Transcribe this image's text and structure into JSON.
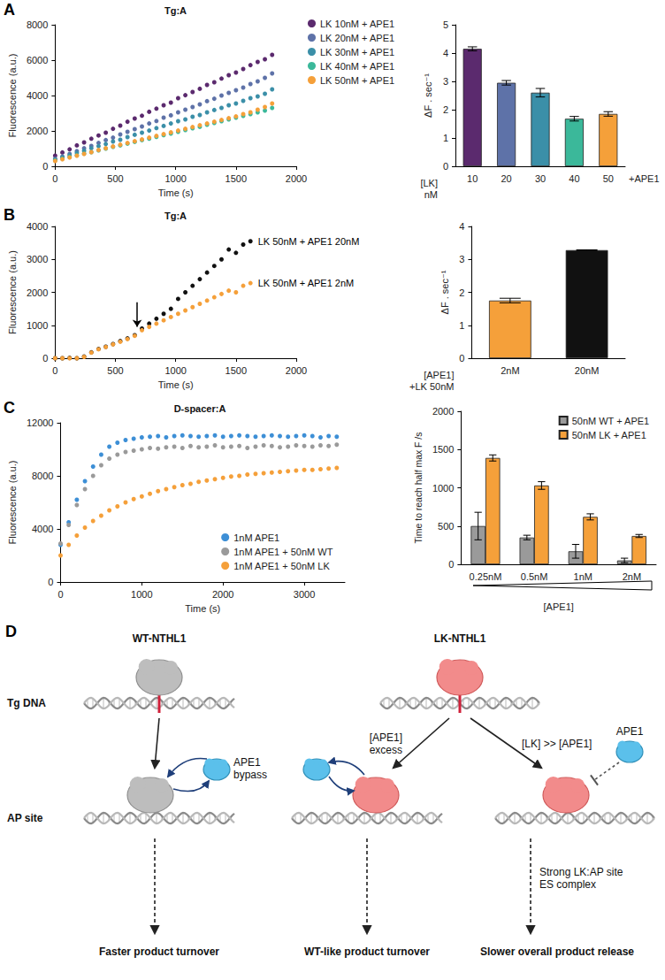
{
  "chart_data": [
    {
      "panel": "A",
      "type": "scatter",
      "title": "Tg:A",
      "xlabel": "Time (s)",
      "ylabel": "Fluorescence (a.u.)",
      "x": [
        0,
        60,
        120,
        180,
        240,
        300,
        360,
        420,
        480,
        540,
        600,
        660,
        720,
        780,
        840,
        900,
        960,
        1020,
        1080,
        1140,
        1200,
        1260,
        1320,
        1380,
        1440,
        1500,
        1560,
        1620,
        1680,
        1740,
        1800
      ],
      "xlim": [
        0,
        2000
      ],
      "xticks": [
        0,
        500,
        1000,
        1500,
        2000
      ],
      "ylim": [
        0,
        8000
      ],
      "yticks": [
        0,
        2000,
        4000,
        6000,
        8000
      ],
      "marker": "circle",
      "legend": "right",
      "series": [
        {
          "name": "LK 10nM + APE1",
          "color": "#5b2a6e",
          "values": [
            600,
            780,
            960,
            1180,
            1350,
            1560,
            1740,
            1900,
            2120,
            2300,
            2520,
            2700,
            2860,
            3080,
            3260,
            3450,
            3600,
            3850,
            4020,
            4200,
            4380,
            4600,
            4750,
            4960,
            5150,
            5300,
            5500,
            5720,
            5900,
            6050,
            6300
          ]
        },
        {
          "name": "LK 20nM + APE1",
          "color": "#5e72a8",
          "values": [
            420,
            560,
            700,
            860,
            1020,
            1150,
            1320,
            1480,
            1620,
            1800,
            1950,
            2100,
            2250,
            2420,
            2560,
            2750,
            2880,
            3050,
            3200,
            3350,
            3500,
            3680,
            3820,
            4000,
            4150,
            4300,
            4450,
            4650,
            4800,
            5000,
            5250
          ]
        },
        {
          "name": "LK 30nM + APE1",
          "color": "#3b8fa8",
          "values": [
            380,
            500,
            620,
            760,
            880,
            1020,
            1140,
            1260,
            1400,
            1500,
            1650,
            1780,
            1900,
            2020,
            2160,
            2280,
            2420,
            2550,
            2650,
            2800,
            2900,
            3050,
            3180,
            3300,
            3450,
            3550,
            3700,
            3850,
            3950,
            4100,
            4350
          ]
        },
        {
          "name": "LK 40nM + APE1",
          "color": "#3bb89a",
          "values": [
            330,
            420,
            520,
            620,
            720,
            800,
            900,
            1000,
            1100,
            1180,
            1280,
            1380,
            1480,
            1560,
            1660,
            1760,
            1850,
            1950,
            2050,
            2150,
            2230,
            2350,
            2450,
            2550,
            2650,
            2750,
            2850,
            2950,
            3050,
            3150,
            3300
          ]
        },
        {
          "name": "LK 50nM + APE1",
          "color": "#f5a03a",
          "values": [
            300,
            400,
            500,
            600,
            700,
            800,
            920,
            1020,
            1120,
            1220,
            1320,
            1420,
            1520,
            1620,
            1720,
            1820,
            1920,
            2020,
            2120,
            2220,
            2320,
            2420,
            2520,
            2620,
            2720,
            2820,
            2950,
            3050,
            3200,
            3350,
            3550
          ]
        }
      ]
    },
    {
      "type": "bar",
      "ylabel": "ΔF . sec⁻¹",
      "xlabel": "[LK] nM",
      "annotations": [
        "+APE1"
      ],
      "categories": [
        "10",
        "20",
        "30",
        "40",
        "50"
      ],
      "values": [
        4.15,
        2.95,
        2.6,
        1.68,
        1.85
      ],
      "errors": [
        0.07,
        0.08,
        0.15,
        0.08,
        0.08
      ],
      "colors": [
        "#5b2a6e",
        "#5e72a8",
        "#3b8fa8",
        "#3bb89a",
        "#f5a03a"
      ],
      "ylim": [
        0,
        5
      ],
      "yticks": [
        0,
        1,
        2,
        3,
        4,
        5
      ]
    },
    {
      "panel": "B",
      "type": "scatter",
      "title": "Tg:A",
      "xlabel": "Time (s)",
      "ylabel": "Fluorescence (a.u.)",
      "x": [
        0,
        60,
        120,
        180,
        240,
        300,
        360,
        420,
        480,
        540,
        600,
        660,
        720,
        780,
        840,
        900,
        960,
        1020,
        1080,
        1140,
        1200,
        1260,
        1320,
        1380,
        1440,
        1500,
        1560,
        1620
      ],
      "xlim": [
        0,
        2000
      ],
      "xticks": [
        0,
        500,
        1000,
        1500,
        2000
      ],
      "ylim": [
        0,
        4000
      ],
      "yticks": [
        0,
        1000,
        2000,
        3000,
        4000
      ],
      "marker": "circle",
      "arrow": {
        "x": 680,
        "y_from": 1700,
        "y_to": 950
      },
      "series": [
        {
          "name": "LK 50nM + APE1 20nM",
          "color": "#111111",
          "values": [
            0,
            0,
            10,
            0,
            50,
            180,
            280,
            350,
            430,
            520,
            600,
            700,
            900,
            1050,
            1200,
            1350,
            1500,
            1800,
            2000,
            2200,
            2400,
            2600,
            2800,
            3000,
            3300,
            3200,
            3450,
            3550
          ]
        },
        {
          "name": "LK 50nM + APE1 2nM",
          "color": "#f5a03a",
          "values": [
            0,
            0,
            0,
            0,
            40,
            170,
            270,
            340,
            420,
            500,
            580,
            680,
            850,
            950,
            1050,
            1150,
            1250,
            1350,
            1450,
            1550,
            1650,
            1750,
            1850,
            1950,
            2050,
            2000,
            2200,
            2280
          ]
        }
      ]
    },
    {
      "type": "bar",
      "ylabel": "ΔF . sec⁻¹",
      "xlabel": "[APE1] +LK 50nM",
      "categories": [
        "2nM",
        "20nM"
      ],
      "values": [
        1.75,
        3.28
      ],
      "errors": [
        0.07,
        0.01
      ],
      "colors": [
        "#f5a03a",
        "#111111"
      ],
      "ylim": [
        0,
        4
      ],
      "yticks": [
        0,
        1,
        2,
        3,
        4
      ]
    },
    {
      "panel": "C",
      "type": "scatter",
      "title": "D-spacer:A",
      "xlabel": "Time (s)",
      "ylabel": "Fluorescence (a.u.)",
      "x": [
        0,
        100,
        200,
        300,
        400,
        500,
        600,
        700,
        800,
        900,
        1000,
        1100,
        1200,
        1300,
        1400,
        1500,
        1600,
        1700,
        1800,
        1900,
        2000,
        2100,
        2200,
        2300,
        2400,
        2500,
        2600,
        2700,
        2800,
        2900,
        3000,
        3100,
        3200,
        3300,
        3400
      ],
      "xlim": [
        0,
        3500
      ],
      "xticks": [
        0,
        1000,
        2000,
        3000
      ],
      "ylim": [
        0,
        12000
      ],
      "yticks": [
        0,
        4000,
        8000,
        12000
      ],
      "marker": "circle",
      "legend": "lower right",
      "series": [
        {
          "name": "1nM APE1",
          "color": "#3d8fd6",
          "values": [
            2800,
            4500,
            6200,
            7600,
            8700,
            9600,
            10200,
            10500,
            10700,
            10800,
            10900,
            10950,
            11000,
            10900,
            11000,
            11050,
            11000,
            10950,
            11000,
            11050,
            10950,
            11000,
            11050,
            11000,
            10950,
            11000,
            11050,
            11000,
            10950,
            11000,
            11050,
            11000,
            10900,
            11000,
            10950
          ]
        },
        {
          "name": "1nM APE1 + 50nM WT",
          "color": "#9a9a9a",
          "values": [
            2900,
            4300,
            5800,
            7000,
            8000,
            8800,
            9300,
            9600,
            9800,
            9900,
            10000,
            10100,
            10050,
            10150,
            10200,
            10100,
            10250,
            10150,
            10200,
            10300,
            10150,
            10200,
            10250,
            10100,
            10200,
            10300,
            10250,
            10150,
            10200,
            10300,
            10250,
            10200,
            10300,
            10250,
            10350
          ]
        },
        {
          "name": "1nM APE1 + 50nM LK",
          "color": "#f5a03a",
          "values": [
            2000,
            2800,
            3500,
            4100,
            4600,
            5000,
            5400,
            5700,
            6000,
            6250,
            6450,
            6650,
            6850,
            7000,
            7150,
            7300,
            7400,
            7550,
            7650,
            7750,
            7850,
            7950,
            8000,
            8100,
            8150,
            8200,
            8250,
            8300,
            8350,
            8400,
            8450,
            8450,
            8500,
            8550,
            8600
          ]
        }
      ]
    },
    {
      "type": "bar",
      "ylabel": "Time to reach half max F /s",
      "xlabel": "[APE1]",
      "legend": "upper right",
      "categories": [
        "0.25nM",
        "0.5nM",
        "1nM",
        "2nM"
      ],
      "series": [
        {
          "name": "50nM WT + APE1",
          "color": "#9a9a9a",
          "values": [
            500,
            350,
            170,
            50
          ],
          "errors": [
            180,
            30,
            90,
            30
          ]
        },
        {
          "name": "50nM LK + APE1",
          "color": "#f5a03a",
          "values": [
            1390,
            1030,
            620,
            370
          ],
          "errors": [
            40,
            50,
            40,
            20
          ]
        }
      ],
      "ylim": [
        0,
        2000
      ],
      "yticks": [
        0,
        500,
        1000,
        1500,
        2000
      ]
    }
  ],
  "diagram": {
    "panel": "D",
    "rows": [
      "Tg DNA",
      "AP site"
    ],
    "wt": {
      "title": "WT-NTHL1",
      "apsite_label": "APE1 bypass",
      "outcome": "Faster product turnover"
    },
    "lk": {
      "title": "LK-NTHL1",
      "paths": [
        {
          "condition": "[APE1] excess",
          "outcome": "WT-like product turnover"
        },
        {
          "condition": "[LK] >> [APE1]",
          "enzyme": "APE1",
          "note": "Strong LK:AP site ES complex",
          "outcome": "Slower overall product release"
        }
      ]
    }
  }
}
